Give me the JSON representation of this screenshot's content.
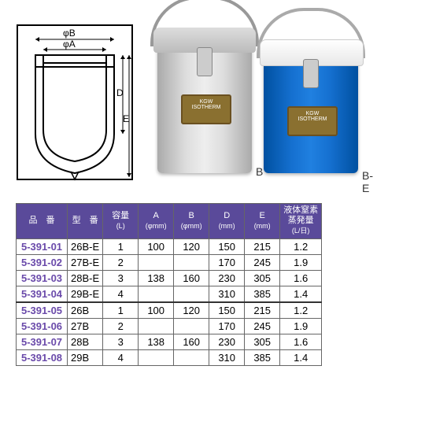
{
  "diagram": {
    "labels": {
      "phiB": "φB",
      "phiA": "φA",
      "D": "D",
      "E": "E"
    }
  },
  "products": {
    "brand_top": "KGW",
    "brand": "ISOTHERM",
    "label_b": "B",
    "label_be": "B-E"
  },
  "table": {
    "headers": {
      "pn": "品　番",
      "model": "型　番",
      "capacity": "容量",
      "capacity_unit": "(L)",
      "A": "A",
      "A_unit": "(φmm)",
      "B": "B",
      "B_unit": "(φmm)",
      "D": "D",
      "D_unit": "(mm)",
      "E": "E",
      "E_unit": "(mm)",
      "evap": "液体窒素",
      "evap2": "蒸発量",
      "evap_unit": "(L/日)"
    },
    "rows": [
      {
        "pn": "5-391-01",
        "model": "26B-E",
        "cap": "1",
        "A": "100",
        "B": "120",
        "D": "150",
        "E": "215",
        "ev": "1.2",
        "sep": false
      },
      {
        "pn": "5-391-02",
        "model": "27B-E",
        "cap": "2",
        "A": "",
        "B": "",
        "D": "170",
        "E": "245",
        "ev": "1.9",
        "sep": false
      },
      {
        "pn": "5-391-03",
        "model": "28B-E",
        "cap": "3",
        "A": "138",
        "B": "160",
        "D": "230",
        "E": "305",
        "ev": "1.6",
        "sep": false
      },
      {
        "pn": "5-391-04",
        "model": "29B-E",
        "cap": "4",
        "A": "",
        "B": "",
        "D": "310",
        "E": "385",
        "ev": "1.4",
        "sep": false
      },
      {
        "pn": "5-391-05",
        "model": "26B",
        "cap": "1",
        "A": "100",
        "B": "120",
        "D": "150",
        "E": "215",
        "ev": "1.2",
        "sep": true
      },
      {
        "pn": "5-391-06",
        "model": "27B",
        "cap": "2",
        "A": "",
        "B": "",
        "D": "170",
        "E": "245",
        "ev": "1.9",
        "sep": false
      },
      {
        "pn": "5-391-07",
        "model": "28B",
        "cap": "3",
        "A": "138",
        "B": "160",
        "D": "230",
        "E": "305",
        "ev": "1.6",
        "sep": false
      },
      {
        "pn": "5-391-08",
        "model": "29B",
        "cap": "4",
        "A": "",
        "B": "",
        "D": "310",
        "E": "385",
        "ev": "1.4",
        "sep": false
      }
    ]
  }
}
